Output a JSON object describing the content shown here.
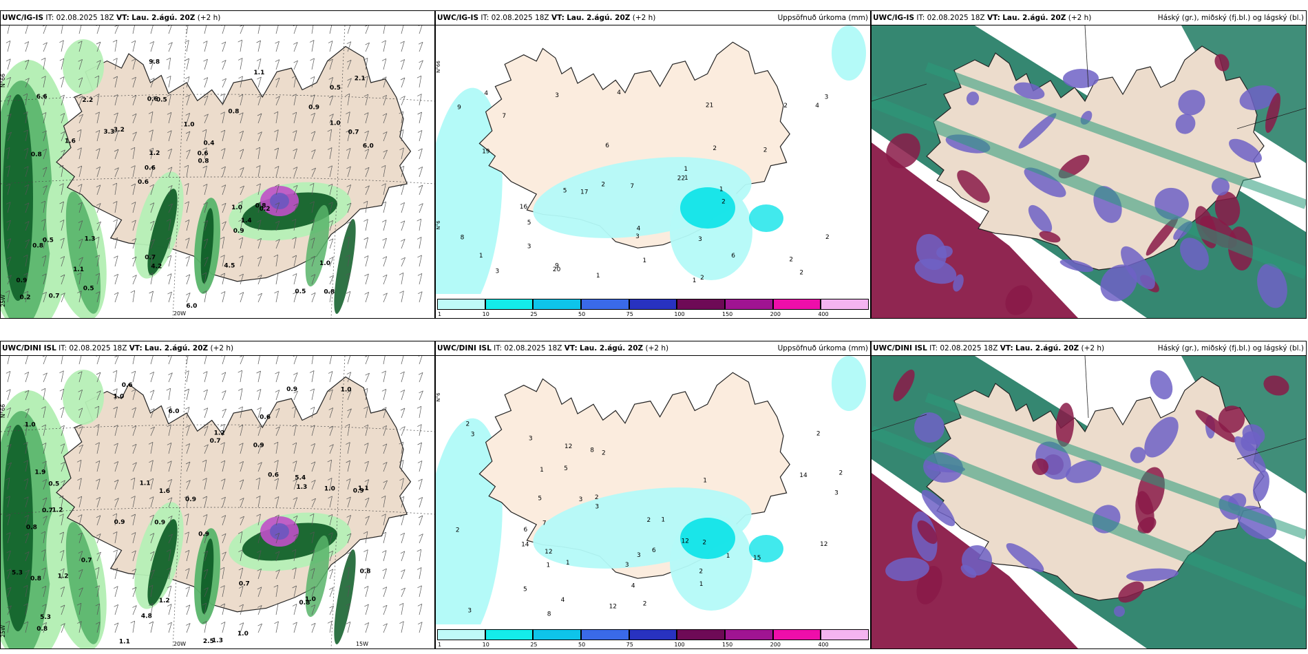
{
  "rows": [
    {
      "model": "UWC/IG-IS",
      "it_label": "IT:",
      "it_value": "02.08.2025 18Z",
      "vt_label": "VT:",
      "vt_value": "Lau. 2.ágú. 20Z",
      "lead": "(+2 h)",
      "wind_panel": {
        "lat_label": "N°66",
        "lon_labels": [
          "20W"
        ],
        "side_labels": [
          "N°66",
          "25W"
        ],
        "values": [
          "0.8",
          "0.8",
          "0.5",
          "0.6",
          "0.8",
          "0.7",
          "0.6",
          "1.0",
          "0.5",
          "3.2",
          "0.9",
          "1.1",
          "0.5",
          "0.4",
          "0.2",
          "6.6",
          "9.8",
          "6.0",
          "1.0",
          "1.0",
          "0.6",
          "0.7",
          "1.2",
          "2.2",
          "1.1",
          "1.3",
          "0.5",
          "1.0",
          "0.8",
          "6.0",
          "3.3",
          "1.6",
          "0.9",
          "0.5",
          "0.7",
          "0.6",
          "0.2",
          "4.2",
          "0.8",
          "0.8",
          "0.9",
          "2.1",
          "1.4",
          "4.5"
        ]
      },
      "precip_panel": {
        "title": "Uppsöfnuð úrkoma (mm)",
        "lat_labels": [
          "N°66",
          "N°6"
        ],
        "values": [
          "1",
          "1",
          "9",
          "6",
          "3",
          "7",
          "5",
          "2",
          "4",
          "6",
          "2",
          "1",
          "2",
          "3",
          "21",
          "22",
          "19",
          "20",
          "17",
          "9",
          "3",
          "3",
          "1",
          "3",
          "2",
          "16",
          "8",
          "5",
          "4",
          "2",
          "7",
          "2",
          "4",
          "4",
          "3",
          "1",
          "2",
          "1",
          "2",
          "2",
          "1"
        ]
      },
      "cloud_panel": {
        "title": "Háský (gr.), miðský (fj.bl.) og lágský (bl.)"
      }
    },
    {
      "model": "UWC/DINI ISL",
      "it_label": "IT:",
      "it_value": "02.08.2025 18Z",
      "vt_label": "VT:",
      "vt_value": "Lau. 2.ágú. 20Z",
      "lead": "(+2 h)",
      "wind_panel": {
        "lat_label": "N°66",
        "lon_labels": [
          "20W",
          "15W"
        ],
        "side_labels": [
          "N°66",
          "25W"
        ],
        "values": [
          "0.6",
          "0.6",
          "0.9",
          "0.9",
          "0.9",
          "1.2",
          "1.0",
          "0.9",
          "0.8",
          "0.7",
          "0.9",
          "0.8",
          "1.0",
          "0.9",
          "2.5",
          "1.3",
          "1.2",
          "0.9",
          "0.6",
          "0.7",
          "0.5",
          "0.7",
          "1.1",
          "1.0",
          "5.3",
          "1.9",
          "1.6",
          "1.3",
          "1.0",
          "0.8",
          "0.8",
          "1.2",
          "1.2",
          "1.1",
          "0.7",
          "0.8",
          "5.4",
          "4.8",
          "1.0",
          "6.0",
          "5.3",
          "1.1",
          "1.0"
        ]
      },
      "precip_panel": {
        "title": "Uppsöfnuð úrkoma (mm)",
        "lat_labels": [
          "N°6"
        ],
        "values": [
          "3",
          "2",
          "2",
          "2",
          "2",
          "2",
          "2",
          "1",
          "3",
          "1",
          "1",
          "1",
          "8",
          "14",
          "3",
          "3",
          "3",
          "5",
          "5",
          "2",
          "3",
          "4",
          "4",
          "7",
          "6",
          "6",
          "12",
          "15",
          "12",
          "8",
          "12",
          "12",
          "14",
          "12",
          "2",
          "5",
          "3",
          "3",
          "1",
          "1",
          "1",
          "2",
          "2"
        ]
      },
      "cloud_panel": {
        "title": "Háský (gr.), miðský (fj.bl.) og lágský (bl.)"
      }
    }
  ],
  "colorbar": {
    "labels": [
      "1",
      "10",
      "25",
      "50",
      "75",
      "100",
      "150",
      "200",
      "400"
    ],
    "colors": [
      "#bffaf8",
      "#14ecea",
      "#0ec4ea",
      "#3a6ae8",
      "#2832c0",
      "#6e0a56",
      "#a01492",
      "#ee0eaa",
      "#f4b4f0"
    ]
  },
  "colors": {
    "land": "#ecdccc",
    "precip_land": "#fbecde",
    "precip_light": "#b4faf8",
    "precip_mid": "#12e4e8",
    "green_light": "#b6efb6",
    "green_mid": "#58b46a",
    "green_dark": "#0b5a24",
    "high_cloud": "#1f7a62",
    "mid_cloud": "#6e62c6",
    "low_cloud": "#8a1a48"
  }
}
